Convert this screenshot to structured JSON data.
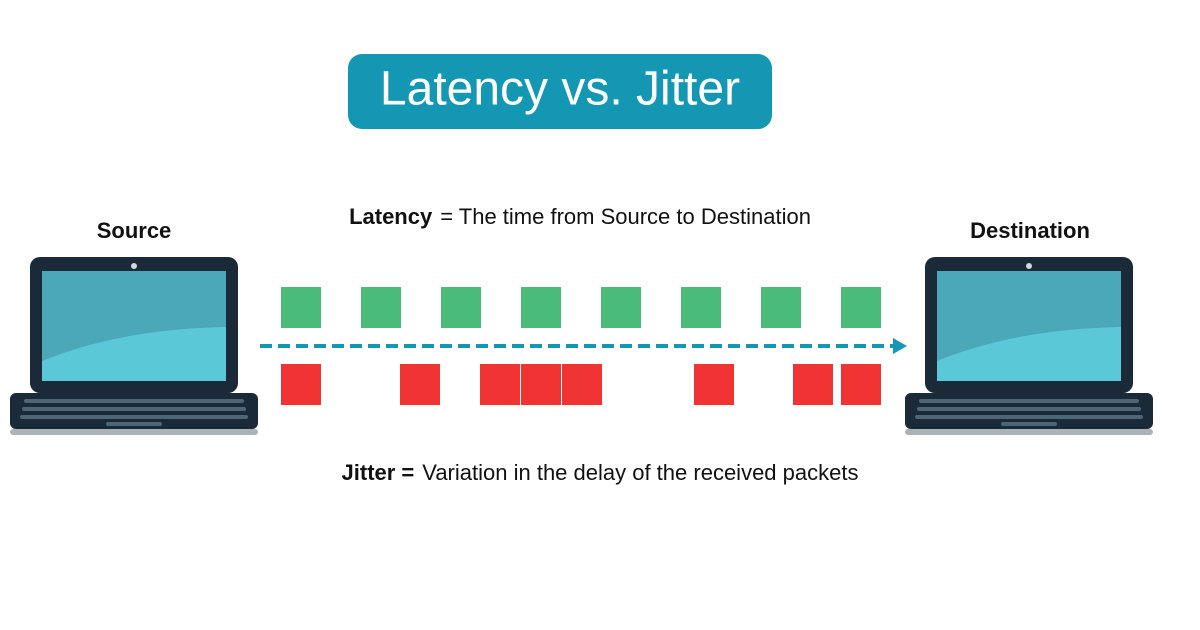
{
  "title": "Latency vs. Jitter",
  "source": {
    "label": "Source"
  },
  "destination": {
    "label": "Destination"
  },
  "latency": {
    "term": "Latency",
    "definition": "= The time from Source to Destination"
  },
  "jitter": {
    "term": "Jitter =",
    "definition": "Variation in the delay of the received packets"
  }
}
